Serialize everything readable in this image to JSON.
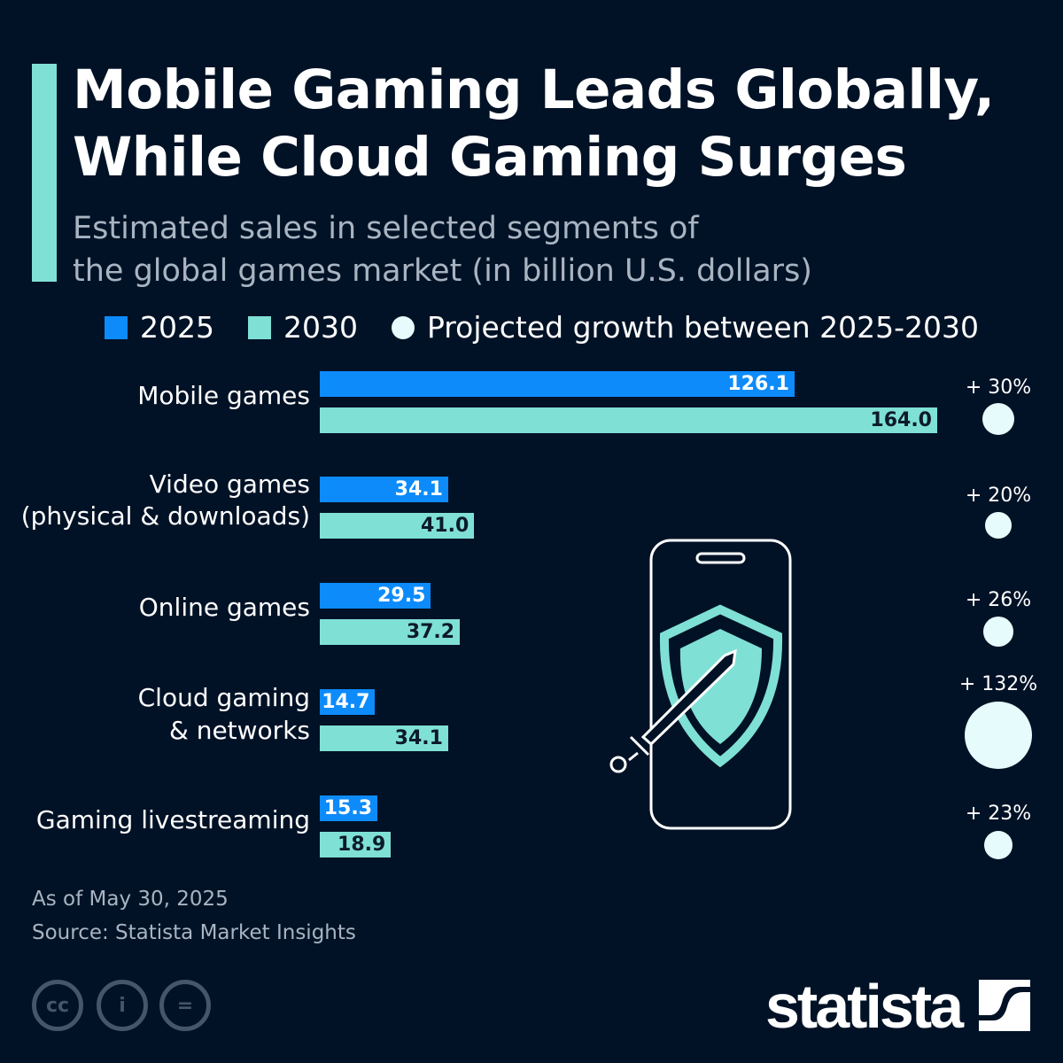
{
  "title": "Mobile Gaming Leads Globally, While Cloud Gaming Surges",
  "title_lines": [
    "Mobile Gaming Leads Globally,",
    "While Cloud Gaming Surges"
  ],
  "subtitle_lines": [
    "Estimated sales in selected segments of",
    "the global games market (in billion U.S. dollars)"
  ],
  "legend": {
    "s2025": "2025",
    "s2030": "2030",
    "growth": "Projected growth between 2025-2030"
  },
  "colors": {
    "background": "#021226",
    "2025": "#0d8bfb",
    "2030": "#7fe0d6",
    "growth": "#e6fbfb"
  },
  "chart_data": {
    "type": "bar",
    "orientation": "horizontal",
    "categories": [
      "Mobile games",
      "Video games (physical & downloads)",
      "Online games",
      "Cloud gaming & networks",
      "Gaming livestreaming"
    ],
    "category_lines": [
      [
        "Mobile games"
      ],
      [
        "Video games",
        "(physical & downloads)"
      ],
      [
        "Online games"
      ],
      [
        "Cloud gaming",
        "& networks"
      ],
      [
        "Gaming livestreaming"
      ]
    ],
    "series": [
      {
        "name": "2025",
        "values": [
          126.1,
          34.1,
          29.5,
          14.7,
          15.3
        ],
        "labels": [
          "126.1",
          "34.1",
          "29.5",
          "14.7",
          "15.3"
        ]
      },
      {
        "name": "2030",
        "values": [
          164.0,
          41.0,
          37.2,
          34.1,
          18.9
        ],
        "labels": [
          "164.0",
          "41.0",
          "37.2",
          "34.1",
          "18.9"
        ]
      }
    ],
    "growth": {
      "name": "Projected growth between 2025-2030",
      "values": [
        30,
        20,
        26,
        132,
        23
      ],
      "labels": [
        "+ 30%",
        "+ 20%",
        "+ 26%",
        "+ 132%",
        "+ 23%"
      ]
    },
    "legend_position": "top",
    "grid": false
  },
  "footer": {
    "date": "As of May 30, 2025",
    "source": "Source: Statista Market Insights",
    "logo": "statista",
    "license_icons": [
      "cc",
      "by",
      "nd"
    ]
  }
}
